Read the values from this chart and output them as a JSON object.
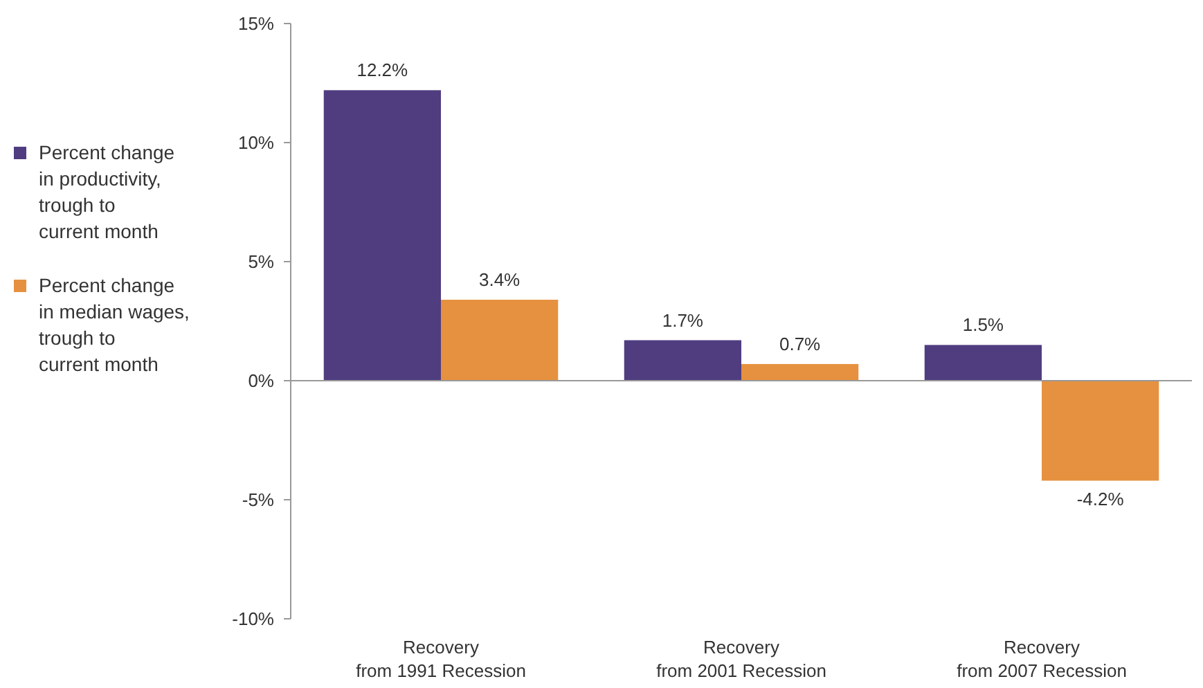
{
  "chart_data": {
    "type": "bar",
    "categories": [
      "Recovery\nfrom 1991 Recession",
      "Recovery\nfrom 2001 Recession",
      "Recovery\nfrom 2007 Recession"
    ],
    "series": [
      {
        "name": "Percent change\nin productivity,\ntrough to\ncurrent month",
        "color": "#4f3d80",
        "values": [
          12.2,
          1.7,
          1.5
        ],
        "value_labels": [
          "12.2%",
          "1.7%",
          "1.5%"
        ]
      },
      {
        "name": "Percent change\nin median wages,\ntrough to\ncurrent month",
        "color": "#e6913f",
        "values": [
          3.4,
          0.7,
          -4.2
        ],
        "value_labels": [
          "3.4%",
          "0.7%",
          "-4.2%"
        ]
      }
    ],
    "ylim": [
      -10,
      15
    ],
    "yticks": [
      {
        "value": -10,
        "label": "-10%"
      },
      {
        "value": -5,
        "label": "-5%"
      },
      {
        "value": 0,
        "label": "0%"
      },
      {
        "value": 5,
        "label": "5%"
      },
      {
        "value": 10,
        "label": "10%"
      },
      {
        "value": 15,
        "label": "15%"
      }
    ],
    "legend": "left"
  }
}
